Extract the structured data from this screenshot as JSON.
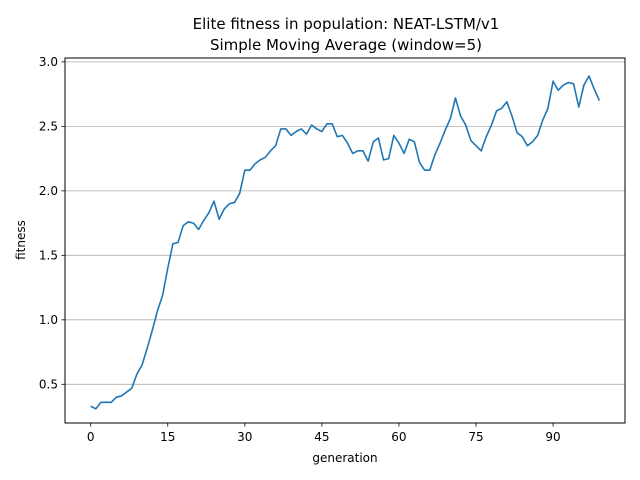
{
  "chart_data": {
    "type": "line",
    "title": "Elite fitness in population: NEAT-LSTM/v1",
    "subtitle": "Simple Moving Average (window=5)",
    "xlabel": "generation",
    "ylabel": "fitness",
    "xlim": [
      -5,
      104
    ],
    "ylim": [
      0.2,
      3.03
    ],
    "xticks": [
      0,
      15,
      30,
      45,
      60,
      75,
      90
    ],
    "yticks": [
      0.5,
      1.0,
      1.5,
      2.0,
      2.5,
      3.0
    ],
    "ytick_labels": [
      "0.5",
      "1.0",
      "1.5",
      "2.0",
      "2.5",
      "3.0"
    ],
    "grid": "horizontal",
    "line_color": "#1f77b4",
    "series": [
      {
        "name": "fitness",
        "x": [
          0,
          1,
          2,
          3,
          4,
          5,
          6,
          7,
          8,
          9,
          10,
          11,
          12,
          13,
          14,
          15,
          16,
          17,
          18,
          19,
          20,
          21,
          22,
          23,
          24,
          25,
          26,
          27,
          28,
          29,
          30,
          31,
          32,
          33,
          34,
          35,
          36,
          37,
          38,
          39,
          40,
          41,
          42,
          43,
          44,
          45,
          46,
          47,
          48,
          49,
          50,
          51,
          52,
          53,
          54,
          55,
          56,
          57,
          58,
          59,
          60,
          61,
          62,
          63,
          64,
          65,
          66,
          67,
          68,
          69,
          70,
          71,
          72,
          73,
          74,
          75,
          76,
          77,
          78,
          79,
          80,
          81,
          82,
          83,
          84,
          85,
          86,
          87,
          88,
          89,
          90,
          91,
          92,
          93,
          94,
          95,
          96,
          97,
          98,
          99
        ],
        "values": [
          0.33,
          0.31,
          0.36,
          0.36,
          0.36,
          0.4,
          0.41,
          0.44,
          0.47,
          0.58,
          0.65,
          0.78,
          0.92,
          1.07,
          1.19,
          1.4,
          1.59,
          1.6,
          1.73,
          1.76,
          1.75,
          1.7,
          1.77,
          1.83,
          1.92,
          1.78,
          1.86,
          1.9,
          1.91,
          1.98,
          2.16,
          2.16,
          2.21,
          2.24,
          2.26,
          2.31,
          2.35,
          2.48,
          2.48,
          2.43,
          2.46,
          2.48,
          2.44,
          2.51,
          2.48,
          2.46,
          2.52,
          2.52,
          2.42,
          2.43,
          2.37,
          2.29,
          2.31,
          2.31,
          2.23,
          2.38,
          2.41,
          2.24,
          2.25,
          2.43,
          2.37,
          2.29,
          2.4,
          2.38,
          2.22,
          2.16,
          2.16,
          2.28,
          2.37,
          2.47,
          2.56,
          2.72,
          2.58,
          2.51,
          2.39,
          2.35,
          2.31,
          2.42,
          2.51,
          2.62,
          2.64,
          2.69,
          2.58,
          2.45,
          2.42,
          2.35,
          2.38,
          2.43,
          2.55,
          2.64,
          2.85,
          2.78,
          2.82,
          2.84,
          2.83,
          2.65,
          2.82,
          2.89,
          2.79,
          2.7
        ]
      }
    ]
  }
}
